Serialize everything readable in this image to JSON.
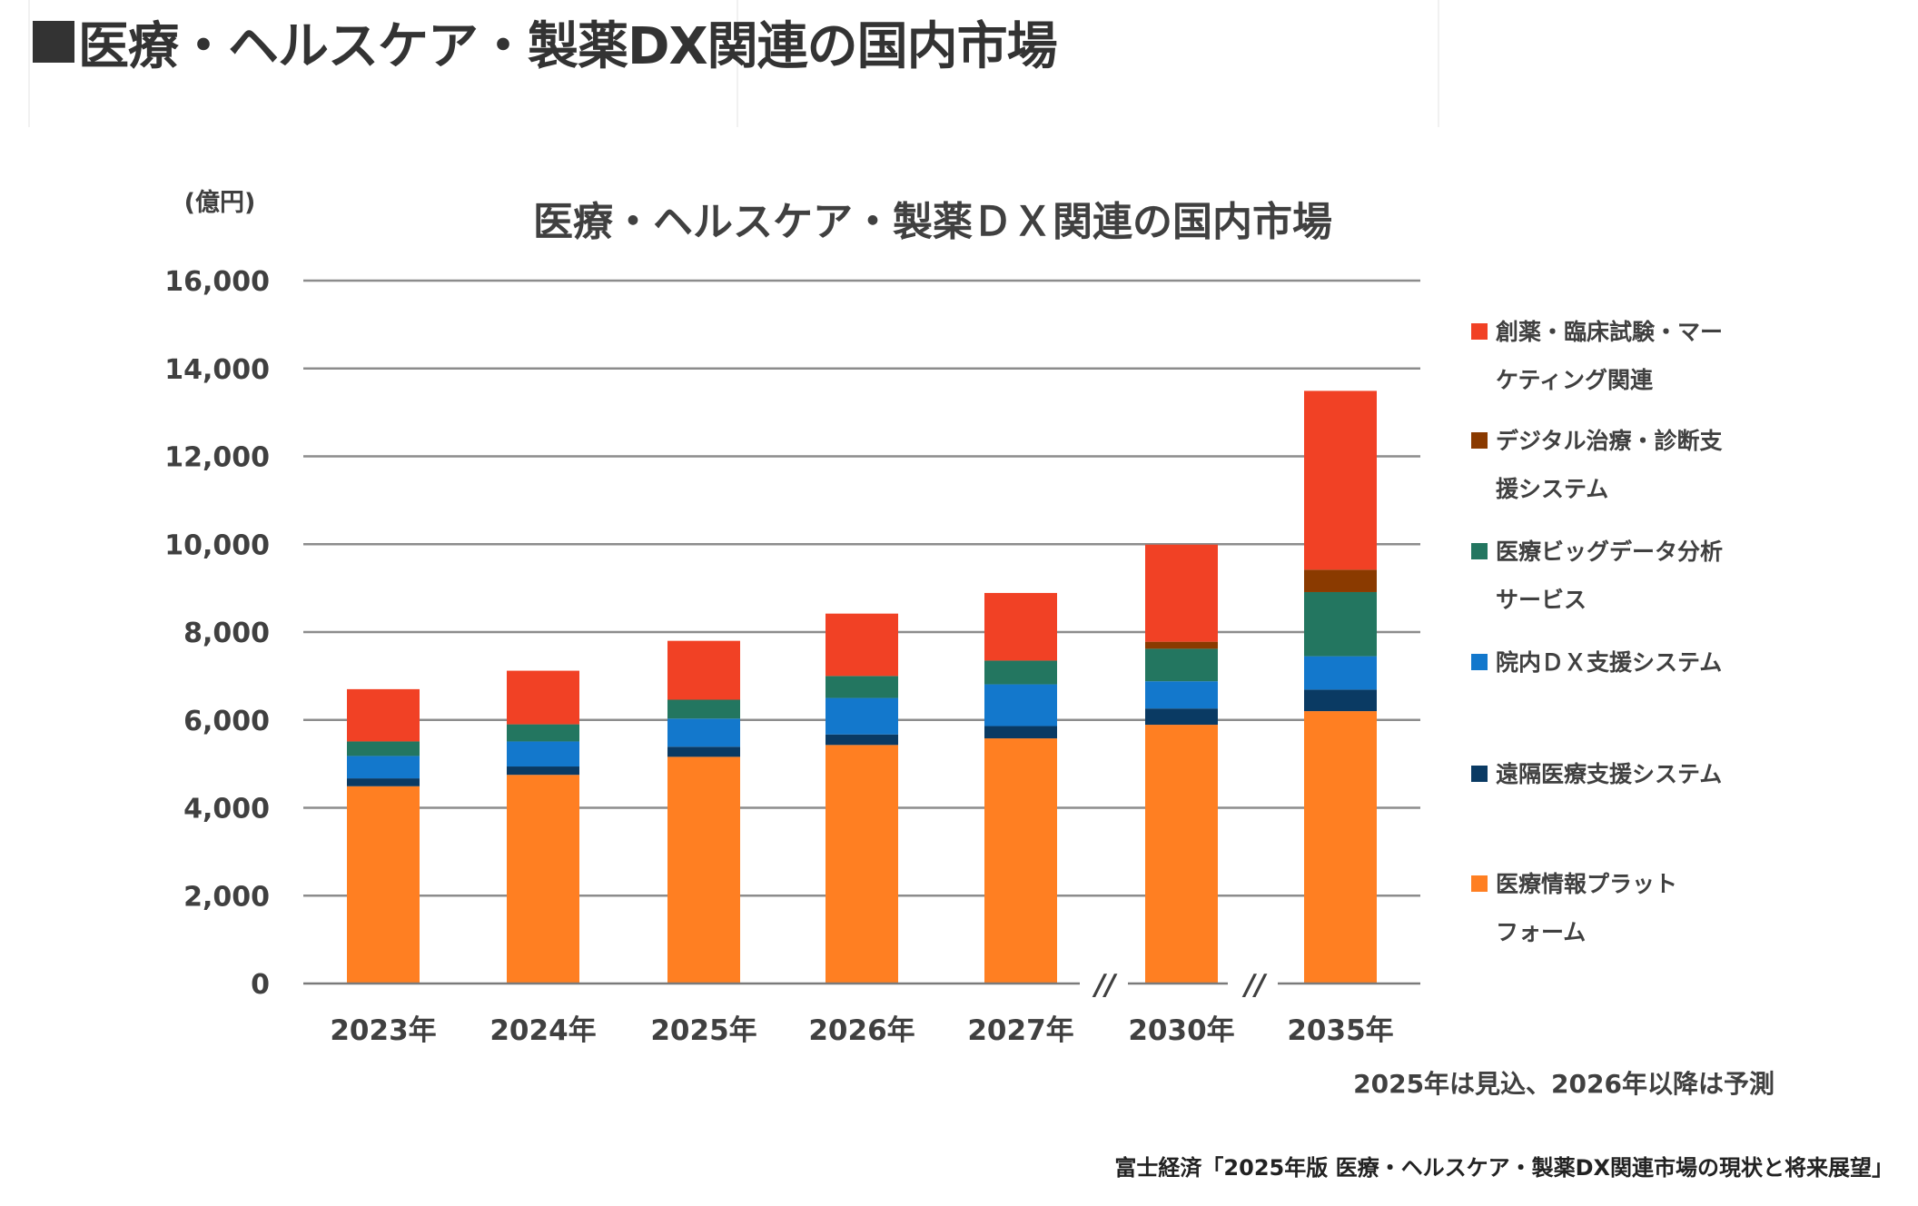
{
  "page": {
    "heading_marker": "■",
    "heading": "医療・ヘルスケア・製薬DX関連の国内市場"
  },
  "chart_data": {
    "type": "bar",
    "stacked": true,
    "title": "医療・ヘルスケア・製薬ＤＸ関連の国内市場",
    "unit_label": "(億円)",
    "xlabel": "",
    "ylabel": "(億円)",
    "ylim": [
      0,
      16000
    ],
    "yticks": [
      0,
      2000,
      4000,
      6000,
      8000,
      10000,
      12000,
      14000,
      16000
    ],
    "ytick_labels": [
      "0",
      "2,000",
      "4,000",
      "6,000",
      "8,000",
      "10,000",
      "12,000",
      "14,000",
      "16,000"
    ],
    "grid": true,
    "legend_position": "right",
    "axis_breaks_after": [
      "2027年",
      "2030年"
    ],
    "axis_break_symbol": "//",
    "categories": [
      "2023年",
      "2024年",
      "2025年",
      "2026年",
      "2027年",
      "2030年",
      "2035年"
    ],
    "series": [
      {
        "name": "医療情報プラットフォーム",
        "legend_lines": [
          "医療情報プラット",
          "フォーム"
        ],
        "color": "#FF7F22",
        "values": [
          4490,
          4750,
          5160,
          5430,
          5580,
          5890,
          6200
        ]
      },
      {
        "name": "遠隔医療支援システム",
        "legend_lines": [
          "遠隔医療支援システム"
        ],
        "color": "#0A3A63",
        "values": [
          180,
          190,
          230,
          240,
          280,
          370,
          490
        ]
      },
      {
        "name": "院内ＤＸ支援システム",
        "legend_lines": [
          "院内ＤＸ支援システム"
        ],
        "color": "#1378CC",
        "values": [
          510,
          570,
          640,
          830,
          950,
          620,
          760
        ]
      },
      {
        "name": "医療ビッグデータ分析サービス",
        "legend_lines": [
          "医療ビッグデータ分析",
          "サービス"
        ],
        "color": "#237660",
        "values": [
          330,
          390,
          430,
          500,
          540,
          740,
          1460
        ]
      },
      {
        "name": "デジタル治療・診断支援システム",
        "legend_lines": [
          "デジタル治療・診断支",
          "援システム"
        ],
        "color": "#8A3A00",
        "values": [
          0,
          0,
          0,
          0,
          0,
          160,
          510
        ]
      },
      {
        "name": "創薬・臨床試験・マーケティング関連",
        "legend_lines": [
          "創薬・臨床試験・マー",
          "ケティング関連"
        ],
        "color": "#F14125",
        "values": [
          1190,
          1220,
          1340,
          1420,
          1540,
          2210,
          4070
        ]
      }
    ],
    "totals": [
      6700,
      7120,
      7800,
      8420,
      8880,
      10000,
      13500
    ],
    "note": "2025年は見込、2026年以降は予測",
    "source": "富士経済「2025年版 医療・ヘルスケア・製薬DX関連市場の現状と将来展望」"
  }
}
